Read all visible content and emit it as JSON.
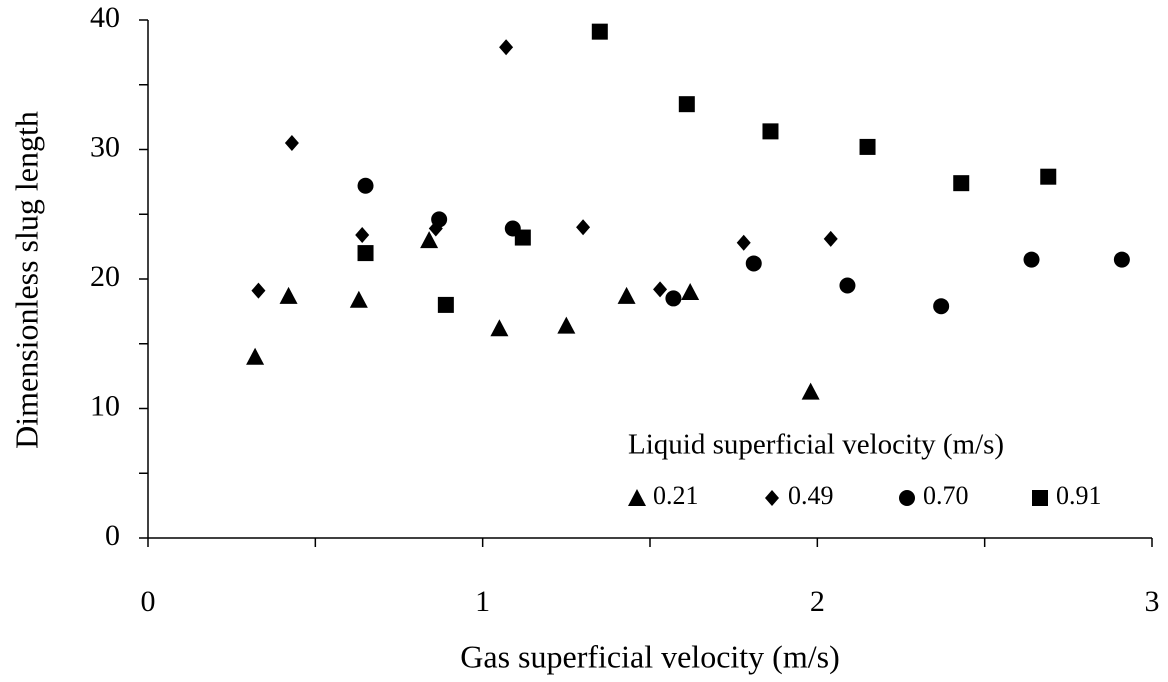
{
  "chart_data": {
    "type": "scatter",
    "xlabel": "Gas superficial velocity (m/s)",
    "ylabel": "Dimensionless slug length",
    "legend_title": "Liquid superficial velocity (m/s)",
    "xlim": [
      0,
      3
    ],
    "xticks": [
      0,
      1,
      2,
      3
    ],
    "xticks_minor": [
      0.5,
      1.5,
      2.5
    ],
    "ylim": [
      0,
      40
    ],
    "yticks": [
      0,
      10,
      20,
      30,
      40
    ],
    "yticks_minor": [
      5,
      15,
      25,
      35
    ],
    "legend": "lower right",
    "series": [
      {
        "name": "0.21",
        "color": "#000000",
        "marker": "triangle",
        "x": [
          0.32,
          0.42,
          0.63,
          0.84,
          1.05,
          1.25,
          1.43,
          1.62,
          1.98
        ],
        "values": [
          14.0,
          18.7,
          18.4,
          23.0,
          16.2,
          16.4,
          18.7,
          19.0,
          11.3
        ]
      },
      {
        "name": "0.49",
        "color": "#000000",
        "marker": "diamond",
        "x": [
          0.33,
          0.43,
          0.64,
          0.86,
          1.07,
          1.3,
          1.53,
          1.78,
          2.04
        ],
        "values": [
          19.1,
          30.5,
          23.4,
          23.9,
          37.9,
          24.0,
          19.2,
          22.8,
          23.1
        ]
      },
      {
        "name": "0.70",
        "color": "#000000",
        "marker": "circle",
        "x": [
          0.65,
          0.87,
          1.09,
          1.57,
          1.81,
          2.09,
          2.37,
          2.64,
          2.91
        ],
        "values": [
          27.2,
          24.6,
          23.9,
          18.5,
          21.2,
          19.5,
          17.9,
          21.5,
          21.5
        ]
      },
      {
        "name": "0.91",
        "color": "#000000",
        "marker": "square",
        "x": [
          0.65,
          0.89,
          1.12,
          1.35,
          1.61,
          1.86,
          2.15,
          2.43,
          2.69
        ],
        "values": [
          22.0,
          18.0,
          23.2,
          39.1,
          33.5,
          31.4,
          30.2,
          27.4,
          27.9
        ]
      }
    ]
  }
}
